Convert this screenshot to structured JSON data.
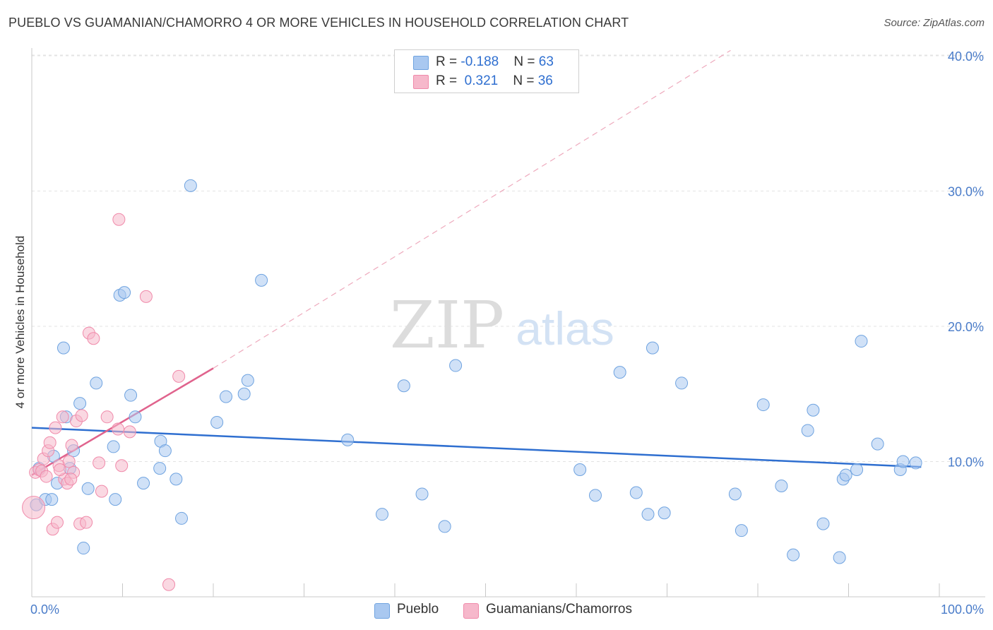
{
  "title": "PUEBLO VS GUAMANIAN/CHAMORRO 4 OR MORE VEHICLES IN HOUSEHOLD CORRELATION CHART",
  "source": "Source: ZipAtlas.com",
  "watermark": {
    "zip": "ZIP",
    "atlas": "atlas"
  },
  "legend": {
    "rows": [
      {
        "r_label": "R = ",
        "r_value": "-0.188",
        "n_label": "N = ",
        "n_value": "63",
        "color": "#a9c8f0"
      },
      {
        "r_label": "R = ",
        "r_value": " 0.321",
        "n_label": "N = ",
        "n_value": "36",
        "color": "#f6b8cb"
      }
    ]
  },
  "bottom_legend": [
    {
      "label": "Pueblo",
      "color": "#a9c8f0"
    },
    {
      "label": "Guamanians/Chamorros",
      "color": "#f6b8cb"
    }
  ],
  "chart_data": {
    "type": "scatter",
    "title": "PUEBLO VS GUAMANIAN/CHAMORRO 4 OR MORE VEHICLES IN HOUSEHOLD CORRELATION CHART",
    "ylabel": "4 or more Vehicles in Household",
    "xlabel": "",
    "xlim": [
      0,
      100
    ],
    "ylim": [
      0,
      41
    ],
    "x_tick_labels": [
      "0.0%",
      "100.0%"
    ],
    "y_ticks": [
      10,
      20,
      30,
      40
    ],
    "y_tick_labels": [
      "10.0%",
      "20.0%",
      "30.0%",
      "40.0%"
    ],
    "series": [
      {
        "name": "Pueblo",
        "color": "#6fa3e0",
        "fill": "#a9c8f0",
        "trend": {
          "x0": 0,
          "y0": 12.5,
          "x1": 98,
          "y1": 9.6,
          "dashed_extension": false
        },
        "points": [
          [
            0.5,
            6.8
          ],
          [
            0.8,
            9.5
          ],
          [
            1.5,
            7.2
          ],
          [
            2.2,
            7.2
          ],
          [
            2.4,
            10.4
          ],
          [
            2.8,
            8.4
          ],
          [
            3.5,
            18.4
          ],
          [
            3.8,
            13.3
          ],
          [
            4.2,
            9.5
          ],
          [
            4.6,
            10.8
          ],
          [
            5.3,
            14.3
          ],
          [
            5.7,
            3.6
          ],
          [
            6.2,
            8.0
          ],
          [
            7.1,
            15.8
          ],
          [
            9.0,
            11.1
          ],
          [
            9.2,
            7.2
          ],
          [
            9.7,
            22.3
          ],
          [
            10.2,
            22.5
          ],
          [
            10.9,
            14.9
          ],
          [
            11.4,
            13.3
          ],
          [
            12.3,
            8.4
          ],
          [
            14.1,
            9.5
          ],
          [
            14.2,
            11.5
          ],
          [
            14.7,
            10.8
          ],
          [
            15.9,
            8.7
          ],
          [
            16.5,
            5.8
          ],
          [
            17.5,
            30.4
          ],
          [
            20.4,
            12.9
          ],
          [
            21.4,
            14.8
          ],
          [
            23.4,
            15.0
          ],
          [
            23.8,
            16.0
          ],
          [
            25.3,
            23.4
          ],
          [
            34.8,
            11.6
          ],
          [
            38.6,
            6.1
          ],
          [
            41.0,
            15.6
          ],
          [
            43.0,
            7.6
          ],
          [
            45.5,
            5.2
          ],
          [
            46.7,
            17.1
          ],
          [
            60.4,
            9.4
          ],
          [
            62.1,
            7.5
          ],
          [
            64.8,
            16.6
          ],
          [
            66.6,
            7.7
          ],
          [
            67.9,
            6.1
          ],
          [
            68.4,
            18.4
          ],
          [
            69.7,
            6.2
          ],
          [
            71.6,
            15.8
          ],
          [
            77.5,
            7.6
          ],
          [
            78.2,
            4.9
          ],
          [
            80.6,
            14.2
          ],
          [
            82.6,
            8.2
          ],
          [
            83.9,
            3.1
          ],
          [
            85.5,
            12.3
          ],
          [
            86.1,
            13.8
          ],
          [
            87.2,
            5.4
          ],
          [
            89.0,
            2.9
          ],
          [
            89.4,
            8.7
          ],
          [
            89.7,
            9.0
          ],
          [
            90.9,
            9.4
          ],
          [
            91.4,
            18.9
          ],
          [
            93.2,
            11.3
          ],
          [
            95.7,
            9.4
          ],
          [
            96.0,
            10.0
          ],
          [
            97.4,
            9.9
          ]
        ]
      },
      {
        "name": "Guamanians/Chamorros",
        "color": "#f08aaa",
        "fill": "#f6b8cb",
        "trend": {
          "x0": 0,
          "y0": 9.0,
          "x1": 20,
          "y1": 16.9,
          "dashed_to_x": 77.0,
          "dashed_to_y": 40.4
        },
        "points": [
          [
            0.2,
            6.6
          ],
          [
            0.4,
            9.2
          ],
          [
            0.8,
            9.4
          ],
          [
            1.1,
            9.3
          ],
          [
            1.3,
            10.2
          ],
          [
            1.6,
            8.9
          ],
          [
            1.8,
            10.8
          ],
          [
            2.0,
            11.4
          ],
          [
            2.3,
            5.0
          ],
          [
            2.6,
            12.5
          ],
          [
            2.8,
            5.5
          ],
          [
            3.0,
            9.7
          ],
          [
            3.4,
            13.3
          ],
          [
            3.6,
            8.7
          ],
          [
            3.9,
            8.4
          ],
          [
            4.1,
            10.0
          ],
          [
            4.4,
            11.2
          ],
          [
            4.6,
            9.2
          ],
          [
            4.9,
            13.0
          ],
          [
            5.3,
            5.4
          ],
          [
            5.5,
            13.4
          ],
          [
            6.0,
            5.5
          ],
          [
            6.3,
            19.5
          ],
          [
            6.8,
            19.1
          ],
          [
            7.4,
            9.9
          ],
          [
            7.7,
            7.8
          ],
          [
            8.3,
            13.3
          ],
          [
            9.5,
            12.4
          ],
          [
            9.6,
            27.9
          ],
          [
            9.9,
            9.7
          ],
          [
            10.8,
            12.2
          ],
          [
            12.6,
            22.2
          ],
          [
            15.1,
            0.9
          ],
          [
            16.2,
            16.3
          ],
          [
            3.1,
            9.4
          ],
          [
            4.3,
            8.7
          ]
        ]
      }
    ]
  }
}
